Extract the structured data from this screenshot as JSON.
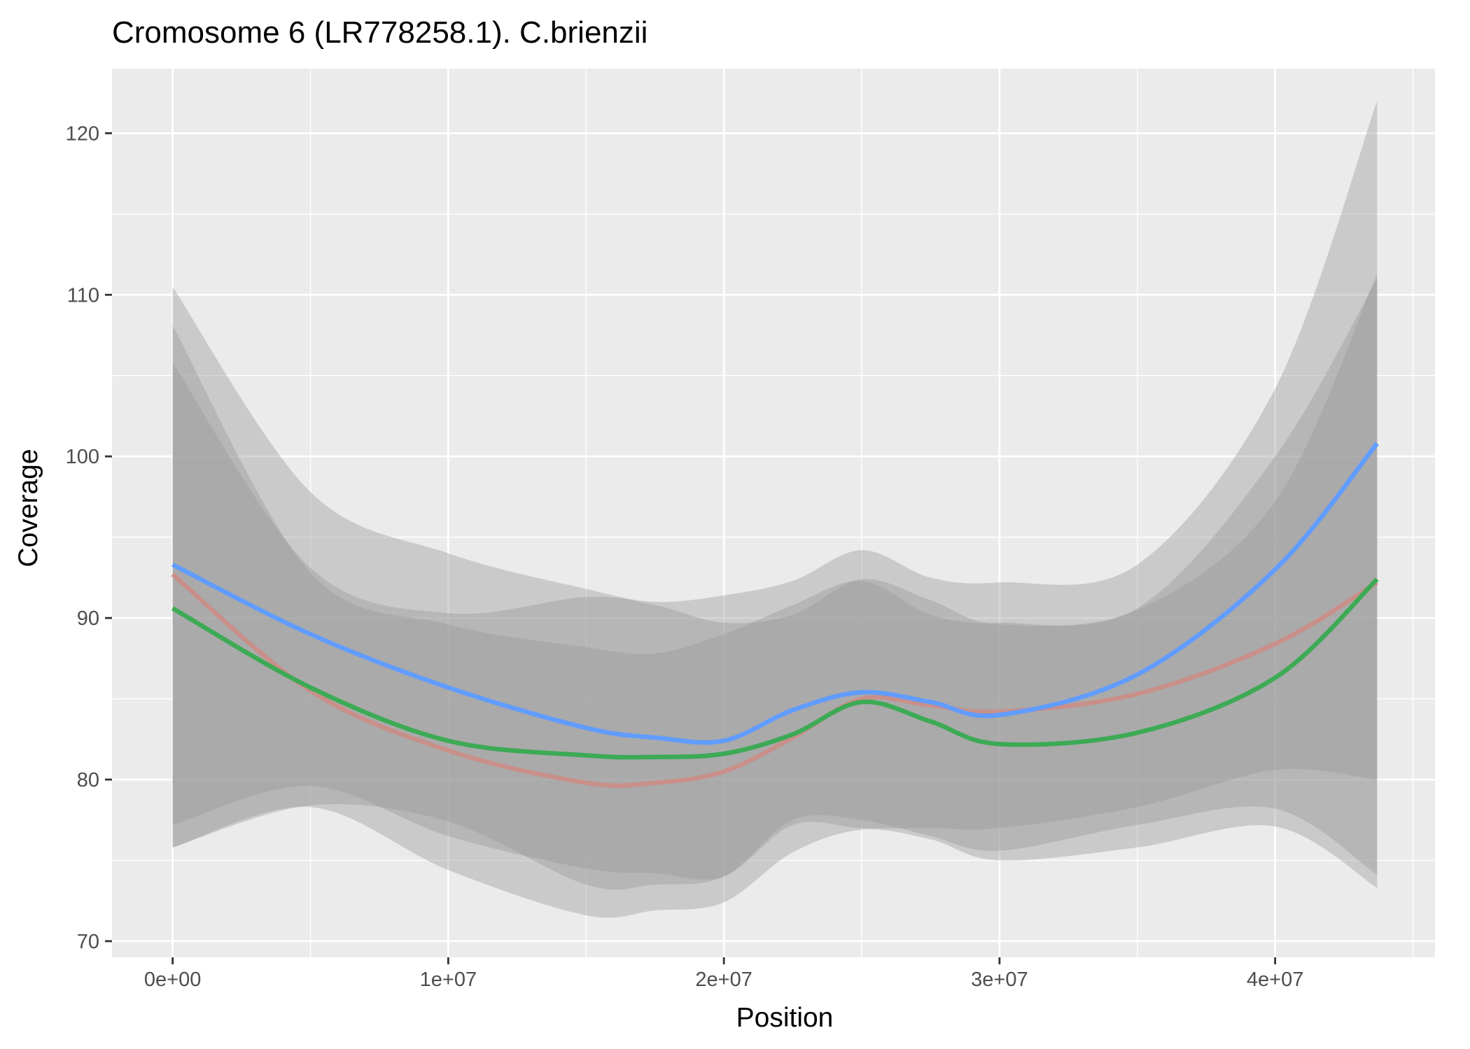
{
  "chart_data": {
    "type": "line",
    "title": "Cromosome 6 (LR778258.1). C.brienzii",
    "xlabel": "Position",
    "ylabel": "Coverage",
    "xlim": [
      -2200000,
      45800000
    ],
    "ylim": [
      69000,
      124000
    ],
    "x_ticks": [
      {
        "value": 0,
        "label": "0e+00"
      },
      {
        "value": 10000000,
        "label": "1e+07"
      },
      {
        "value": 20000000,
        "label": "2e+07"
      },
      {
        "value": 30000000,
        "label": "3e+07"
      },
      {
        "value": 40000000,
        "label": "4e+07"
      }
    ],
    "x_minor_ticks": [
      5000000,
      15000000,
      25000000,
      35000000,
      45000000
    ],
    "y_ticks": [
      {
        "value": 70,
        "label": "70"
      },
      {
        "value": 80,
        "label": "80"
      },
      {
        "value": 90,
        "label": "90"
      },
      {
        "value": 100,
        "label": "100"
      },
      {
        "value": 110,
        "label": "110"
      },
      {
        "value": 120,
        "label": "120"
      }
    ],
    "y_minor_ticks": [
      75,
      85,
      95,
      105,
      115
    ],
    "grid": true,
    "legend": "none",
    "colors": {
      "panel_background": "#ebebeb",
      "grid": "#ffffff",
      "ribbon": "#999999",
      "series_red": "#c98f8a",
      "series_blue": "#619cff",
      "series_green": "#3daa55"
    },
    "x": [
      0,
      5000000,
      10000000,
      15000000,
      17500000,
      20000000,
      22500000,
      25000000,
      27500000,
      30000000,
      35000000,
      40000000,
      43700000
    ],
    "series": [
      {
        "color_key": "series_red",
        "values": [
          92.7,
          85.5,
          81.8,
          79.8,
          79.8,
          80.5,
          82.6,
          85.0,
          84.6,
          84.2,
          85.3,
          88.4,
          92.2
        ],
        "ci_lower": [
          77.2,
          79.6,
          76.5,
          74.5,
          74.2,
          74.0,
          77.2,
          77.0,
          77.0,
          77.0,
          78.3,
          80.6,
          80.0
        ],
        "ci_upper": [
          108.1,
          92.8,
          89.6,
          88.2,
          87.8,
          89.0,
          90.8,
          92.3,
          90.2,
          89.7,
          90.6,
          100.0,
          111.0
        ]
      },
      {
        "color_key": "series_blue",
        "values": [
          93.3,
          89.0,
          85.7,
          83.2,
          82.6,
          82.4,
          84.3,
          85.4,
          84.8,
          84.0,
          86.5,
          93.0,
          100.8
        ],
        "ci_lower": [
          75.8,
          78.4,
          77.4,
          73.5,
          73.5,
          74.0,
          77.5,
          77.5,
          76.5,
          75.6,
          77.2,
          78.2,
          74.1
        ],
        "ci_upper": [
          110.5,
          97.8,
          94.0,
          91.8,
          91.0,
          91.4,
          92.3,
          94.2,
          92.5,
          92.2,
          93.3,
          104.2,
          122.0
        ]
      },
      {
        "color_key": "series_green",
        "values": [
          90.6,
          85.7,
          82.4,
          81.5,
          81.4,
          81.6,
          82.8,
          84.8,
          83.6,
          82.2,
          82.9,
          86.3,
          92.4
        ],
        "ci_lower": [
          75.8,
          78.3,
          74.4,
          71.6,
          71.9,
          72.4,
          75.5,
          76.9,
          76.3,
          75.0,
          75.8,
          77.1,
          73.3
        ],
        "ci_upper": [
          105.8,
          93.1,
          90.3,
          91.3,
          90.8,
          89.7,
          90.2,
          92.4,
          91.1,
          89.6,
          90.5,
          97.2,
          111.3
        ]
      }
    ]
  }
}
